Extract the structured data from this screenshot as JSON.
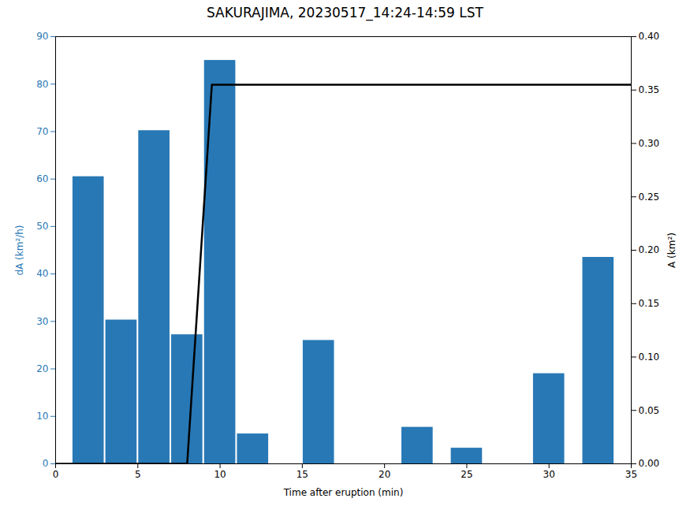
{
  "chart_data": {
    "type": "bar",
    "title": "SAKURAJIMA, 20230517_14:24-14:59 LST",
    "xlabel": "Time after eruption (min)",
    "ylabel": "dA (km²/h)",
    "y2label": "A (km²)",
    "xlim": [
      0,
      35
    ],
    "xticks": [
      0,
      5,
      10,
      15,
      20,
      25,
      30,
      35
    ],
    "ylim": [
      0,
      90
    ],
    "yticks": [
      0,
      10,
      20,
      30,
      40,
      50,
      60,
      70,
      80,
      90
    ],
    "y2lim": [
      0,
      0.4
    ],
    "y2ticks": [
      {
        "value": 0,
        "label": "0.00"
      },
      0.05,
      {
        "value": 0.1,
        "label": "0.10"
      },
      0.15,
      {
        "value": 0.2,
        "label": "0.20"
      },
      0.25,
      {
        "value": 0.3,
        "label": "0.30"
      },
      0.35,
      {
        "value": 0.4,
        "label": "0.40"
      }
    ],
    "grid": false,
    "series": [
      {
        "type": "bar",
        "color": "#2878b5",
        "x": [
          2,
          4,
          6,
          8,
          10,
          12,
          16,
          22,
          25,
          30,
          33
        ],
        "values": [
          60.5,
          30.3,
          70.2,
          27.2,
          85.0,
          6.3,
          26.0,
          7.7,
          3.3,
          19.0,
          43.5
        ]
      },
      {
        "type": "line",
        "axis": "y2",
        "color": "#000000",
        "x": [
          0,
          8,
          9.5,
          35
        ],
        "values": [
          0,
          0,
          0.355,
          0.355
        ]
      }
    ]
  }
}
